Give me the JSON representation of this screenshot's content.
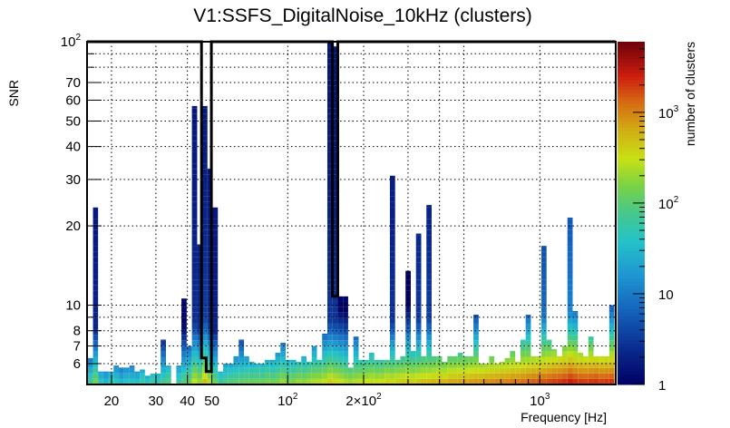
{
  "chart_data": {
    "type": "heatmap",
    "title": "V1:SSFS_DigitalNoise_10kHz (clusters)",
    "xlabel": "Frequency [Hz]",
    "ylabel": "SNR",
    "zlabel": "number of clusters",
    "xscale": "log",
    "yscale": "log",
    "zscale": "log",
    "xlim": [
      16,
      2000
    ],
    "ylim": [
      5,
      100
    ],
    "zlim": [
      1,
      6000
    ],
    "grid": true,
    "colormap": "rainbow (dark blue -> cyan -> green -> yellow -> orange -> red -> dark red)",
    "colorbar_position": "right",
    "x_ticks": [
      {
        "value": 20,
        "label": "20"
      },
      {
        "value": 30,
        "label": "30"
      },
      {
        "value": 40,
        "label": "40"
      },
      {
        "value": 50,
        "label": "50"
      },
      {
        "value": 100,
        "label": "10^2"
      },
      {
        "value": 200,
        "label": "2×10^2"
      },
      {
        "value": 1000,
        "label": "10^3"
      }
    ],
    "y_ticks": [
      {
        "value": 6,
        "label": "6"
      },
      {
        "value": 7,
        "label": "7"
      },
      {
        "value": 8,
        "label": "8"
      },
      {
        "value": 10,
        "label": "10"
      },
      {
        "value": 20,
        "label": "20"
      },
      {
        "value": 30,
        "label": "30"
      },
      {
        "value": 40,
        "label": "40"
      },
      {
        "value": 50,
        "label": "50"
      },
      {
        "value": 60,
        "label": "60"
      },
      {
        "value": 70,
        "label": "70"
      },
      {
        "value": 100,
        "label": "10^2"
      }
    ],
    "z_ticks": [
      {
        "value": 1,
        "label": "1"
      },
      {
        "value": 10,
        "label": "10"
      },
      {
        "value": 100,
        "label": "10^2"
      },
      {
        "value": 1000,
        "label": "10^3"
      }
    ],
    "columns_note": "Each column = one frequency bin; max_snr = top of colored column; base_count = clusters in lowest SNR row (~5)",
    "columns": [
      {
        "f": 16.5,
        "max_snr": 6.3,
        "base_count": 60
      },
      {
        "f": 17.3,
        "max_snr": 23.5,
        "base_count": 150
      },
      {
        "f": 18.1,
        "max_snr": 5.6,
        "base_count": 40
      },
      {
        "f": 19.0,
        "max_snr": 5.6,
        "base_count": 30
      },
      {
        "f": 19.9,
        "max_snr": 5.6,
        "base_count": 50
      },
      {
        "f": 20.9,
        "max_snr": 5.9,
        "base_count": 45
      },
      {
        "f": 21.9,
        "max_snr": 5.8,
        "base_count": 30
      },
      {
        "f": 23.0,
        "max_snr": 5.8,
        "base_count": 40
      },
      {
        "f": 24.1,
        "max_snr": 5.9,
        "base_count": 40
      },
      {
        "f": 25.3,
        "max_snr": 5.6,
        "base_count": 35
      },
      {
        "f": 26.5,
        "max_snr": 5.7,
        "base_count": 60
      },
      {
        "f": 27.8,
        "max_snr": 5.4,
        "base_count": 40
      },
      {
        "f": 29.2,
        "max_snr": 5.5,
        "base_count": 60
      },
      {
        "f": 30.6,
        "max_snr": 5.5,
        "base_count": 50
      },
      {
        "f": 32.1,
        "max_snr": 7.4,
        "base_count": 70
      },
      {
        "f": 33.7,
        "max_snr": 5.9,
        "base_count": 90
      },
      {
        "f": 35.3,
        "max_snr": 5.0,
        "base_count": 1
      },
      {
        "f": 37.0,
        "max_snr": 5.9,
        "base_count": 60
      },
      {
        "f": 38.8,
        "max_snr": 10.6,
        "base_count": 90
      },
      {
        "f": 40.7,
        "max_snr": 7.0,
        "base_count": 120
      },
      {
        "f": 42.7,
        "max_snr": 57,
        "base_count": 300
      },
      {
        "f": 44.8,
        "max_snr": 17.0,
        "base_count": 200
      },
      {
        "f": 46.9,
        "max_snr": 57,
        "base_count": 500
      },
      {
        "f": 49.2,
        "max_snr": 33,
        "base_count": 250
      },
      {
        "f": 51.6,
        "max_snr": 23.5,
        "base_count": 120
      },
      {
        "f": 54.1,
        "max_snr": 5.6,
        "base_count": 60
      },
      {
        "f": 56.8,
        "max_snr": 6.0,
        "base_count": 80
      },
      {
        "f": 59.5,
        "max_snr": 6.0,
        "base_count": 90
      },
      {
        "f": 62.4,
        "max_snr": 6.4,
        "base_count": 100
      },
      {
        "f": 65.5,
        "max_snr": 7.4,
        "base_count": 110
      },
      {
        "f": 68.7,
        "max_snr": 6.4,
        "base_count": 120
      },
      {
        "f": 72.0,
        "max_snr": 6.1,
        "base_count": 120
      },
      {
        "f": 75.5,
        "max_snr": 6.0,
        "base_count": 130
      },
      {
        "f": 79.2,
        "max_snr": 6.0,
        "base_count": 120
      },
      {
        "f": 83.1,
        "max_snr": 6.2,
        "base_count": 150
      },
      {
        "f": 87.1,
        "max_snr": 6.2,
        "base_count": 130
      },
      {
        "f": 91.4,
        "max_snr": 6.6,
        "base_count": 160
      },
      {
        "f": 95.8,
        "max_snr": 7.2,
        "base_count": 200
      },
      {
        "f": 100.5,
        "max_snr": 6.2,
        "base_count": 150
      },
      {
        "f": 105.4,
        "max_snr": 6.2,
        "base_count": 160
      },
      {
        "f": 110.5,
        "max_snr": 6.1,
        "base_count": 200
      },
      {
        "f": 115.9,
        "max_snr": 6.4,
        "base_count": 180
      },
      {
        "f": 121.6,
        "max_snr": 6.1,
        "base_count": 220
      },
      {
        "f": 127.5,
        "max_snr": 7.0,
        "base_count": 250
      },
      {
        "f": 133.7,
        "max_snr": 6.2,
        "base_count": 260
      },
      {
        "f": 140.2,
        "max_snr": 7.8,
        "base_count": 300
      },
      {
        "f": 147.1,
        "max_snr": 100,
        "base_count": 400
      },
      {
        "f": 154.2,
        "max_snr": 96,
        "base_count": 350
      },
      {
        "f": 161.7,
        "max_snr": 10.8,
        "base_count": 300
      },
      {
        "f": 169.6,
        "max_snr": 10.8,
        "base_count": 250
      },
      {
        "f": 177.9,
        "max_snr": 5.8,
        "base_count": 220
      },
      {
        "f": 186.6,
        "max_snr": 7.6,
        "base_count": 260
      },
      {
        "f": 195.7,
        "max_snr": 6.2,
        "base_count": 280
      },
      {
        "f": 205.2,
        "max_snr": 6.2,
        "base_count": 300
      },
      {
        "f": 215.2,
        "max_snr": 6.6,
        "base_count": 330
      },
      {
        "f": 225.7,
        "max_snr": 6.2,
        "base_count": 300
      },
      {
        "f": 236.7,
        "max_snr": 6.2,
        "base_count": 320
      },
      {
        "f": 248.3,
        "max_snr": 6.2,
        "base_count": 380
      },
      {
        "f": 260.4,
        "max_snr": 31,
        "base_count": 350
      },
      {
        "f": 273.1,
        "max_snr": 6.2,
        "base_count": 400
      },
      {
        "f": 286.4,
        "max_snr": 6.4,
        "base_count": 420
      },
      {
        "f": 300.4,
        "max_snr": 13.5,
        "base_count": 450
      },
      {
        "f": 315.1,
        "max_snr": 6.7,
        "base_count": 400
      },
      {
        "f": 330.5,
        "max_snr": 18.7,
        "base_count": 450
      },
      {
        "f": 346.6,
        "max_snr": 6.4,
        "base_count": 500
      },
      {
        "f": 363.5,
        "max_snr": 24.0,
        "base_count": 500
      },
      {
        "f": 381.3,
        "max_snr": 6.4,
        "base_count": 550
      },
      {
        "f": 399.9,
        "max_snr": 6.4,
        "base_count": 600
      },
      {
        "f": 419.4,
        "max_snr": 6.1,
        "base_count": 550
      },
      {
        "f": 439.9,
        "max_snr": 6.4,
        "base_count": 650
      },
      {
        "f": 461.4,
        "max_snr": 6.4,
        "base_count": 650
      },
      {
        "f": 483.9,
        "max_snr": 6.6,
        "base_count": 700
      },
      {
        "f": 507.6,
        "max_snr": 6.4,
        "base_count": 700
      },
      {
        "f": 532.4,
        "max_snr": 6.4,
        "base_count": 750
      },
      {
        "f": 558.4,
        "max_snr": 9.2,
        "base_count": 800
      },
      {
        "f": 585.7,
        "max_snr": 6.0,
        "base_count": 800
      },
      {
        "f": 614.3,
        "max_snr": 6.0,
        "base_count": 850
      },
      {
        "f": 644.3,
        "max_snr": 6.4,
        "base_count": 900
      },
      {
        "f": 675.8,
        "max_snr": 6.0,
        "base_count": 950
      },
      {
        "f": 708.8,
        "max_snr": 6.1,
        "base_count": 1000
      },
      {
        "f": 743.4,
        "max_snr": 6.3,
        "base_count": 1000
      },
      {
        "f": 779.7,
        "max_snr": 6.7,
        "base_count": 1100
      },
      {
        "f": 817.8,
        "max_snr": 6.1,
        "base_count": 1100
      },
      {
        "f": 857.8,
        "max_snr": 7.4,
        "base_count": 1200
      },
      {
        "f": 899.7,
        "max_snr": 9.2,
        "base_count": 1300
      },
      {
        "f": 943.6,
        "max_snr": 6.4,
        "base_count": 1400
      },
      {
        "f": 989.7,
        "max_snr": 6.4,
        "base_count": 1500
      },
      {
        "f": 1038,
        "max_snr": 16.8,
        "base_count": 1600
      },
      {
        "f": 1089,
        "max_snr": 7.4,
        "base_count": 1700
      },
      {
        "f": 1142,
        "max_snr": 6.8,
        "base_count": 1900
      },
      {
        "f": 1198,
        "max_snr": 6.4,
        "base_count": 2000
      },
      {
        "f": 1256,
        "max_snr": 7.0,
        "base_count": 2200
      },
      {
        "f": 1318,
        "max_snr": 21.5,
        "base_count": 2600
      },
      {
        "f": 1382,
        "max_snr": 9.5,
        "base_count": 2200
      },
      {
        "f": 1450,
        "max_snr": 6.6,
        "base_count": 2000
      },
      {
        "f": 1520,
        "max_snr": 6.4,
        "base_count": 1900
      },
      {
        "f": 1595,
        "max_snr": 7.6,
        "base_count": 2000
      },
      {
        "f": 1673,
        "max_snr": 6.4,
        "base_count": 2100
      },
      {
        "f": 1755,
        "max_snr": 6.4,
        "base_count": 1900
      },
      {
        "f": 1840,
        "max_snr": 6.4,
        "base_count": 2000
      },
      {
        "f": 1930,
        "max_snr": 10.0,
        "base_count": 2100
      }
    ],
    "overlay_line": {
      "description": "black step outline (veto/threshold contour)",
      "points": [
        [
          16,
          100
        ],
        [
          45.5,
          100
        ],
        [
          45.5,
          6.3
        ],
        [
          47.5,
          6.3
        ],
        [
          47.5,
          5.6
        ],
        [
          49.8,
          5.6
        ],
        [
          49.8,
          100
        ],
        [
          150.5,
          100
        ],
        [
          150.5,
          10.8
        ],
        [
          158,
          10.8
        ],
        [
          158,
          100
        ],
        [
          2000,
          100
        ]
      ]
    }
  }
}
